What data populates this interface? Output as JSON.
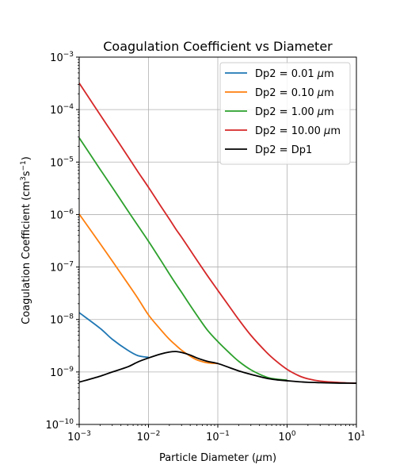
{
  "chart_data": {
    "type": "line",
    "title": "Coagulation Coefficient vs Diameter",
    "xlabel": {
      "prefix": "Particle Diameter (",
      "mu": "μ",
      "suffix": "m)"
    },
    "ylabel": {
      "prefix": "Coagulation Coefficient (cm",
      "exp1": "3",
      "mid": "s",
      "exp2": "−1",
      "suffix": ")"
    },
    "xscale": "log",
    "yscale": "log",
    "xlim": [
      0.001,
      10
    ],
    "ylim": [
      1e-10,
      0.001
    ],
    "grid": true,
    "legend_position": "upper-right",
    "x_ticks": [
      {
        "value": 0.001,
        "base": "10",
        "exp": "−3"
      },
      {
        "value": 0.01,
        "base": "10",
        "exp": "−2"
      },
      {
        "value": 0.1,
        "base": "10",
        "exp": "−1"
      },
      {
        "value": 1,
        "base": "10",
        "exp": "0"
      },
      {
        "value": 10,
        "base": "10",
        "exp": "1"
      }
    ],
    "y_ticks": [
      {
        "value": 1e-10,
        "base": "10",
        "exp": "−10"
      },
      {
        "value": 1e-09,
        "base": "10",
        "exp": "−9"
      },
      {
        "value": 1e-08,
        "base": "10",
        "exp": "−8"
      },
      {
        "value": 1e-07,
        "base": "10",
        "exp": "−7"
      },
      {
        "value": 1e-06,
        "base": "10",
        "exp": "−6"
      },
      {
        "value": 1e-05,
        "base": "10",
        "exp": "−5"
      },
      {
        "value": 0.0001,
        "base": "10",
        "exp": "−4"
      },
      {
        "value": 0.001,
        "base": "10",
        "exp": "−3"
      }
    ],
    "x": [
      0.001,
      0.002,
      0.003,
      0.005,
      0.007,
      0.01,
      0.015,
      0.02,
      0.025,
      0.03,
      0.04,
      0.05,
      0.07,
      0.1,
      0.15,
      0.2,
      0.3,
      0.5,
      0.7,
      1,
      1.5,
      2,
      3,
      5,
      7,
      10
    ],
    "series": [
      {
        "name": "Dp2 = 0.01 μm",
        "label_prefix": "Dp2 = 0.01 ",
        "label_mu": "μ",
        "label_suffix": "m",
        "color": "#1f77b4",
        "values": [
          1.35e-08,
          6.8e-09,
          4.2e-09,
          2.6e-09,
          2.05e-09,
          1.9e-09,
          null,
          null,
          null,
          null,
          null,
          null,
          null,
          null,
          null,
          null,
          null,
          null,
          null,
          null,
          null,
          null,
          null,
          null,
          null,
          null
        ]
      },
      {
        "name": "Dp2 = 0.10 μm",
        "label_prefix": "Dp2 = 0.10 ",
        "label_mu": "μ",
        "label_suffix": "m",
        "color": "#ff7f0e",
        "values": [
          1.02e-06,
          2.8e-07,
          1.3e-07,
          4.9e-08,
          2.55e-08,
          1.22e-08,
          6.4e-09,
          4.2e-09,
          3.2e-09,
          2.6e-09,
          2e-09,
          1.7e-09,
          1.5e-09,
          1.45e-09,
          null,
          null,
          null,
          null,
          null,
          null,
          null,
          null,
          null,
          null,
          null,
          null
        ]
      },
      {
        "name": "Dp2 = 1.00 μm",
        "label_prefix": "Dp2 = 1.00 ",
        "label_mu": "μ",
        "label_suffix": "m",
        "color": "#2ca02c",
        "values": [
          2.9e-05,
          7.3e-06,
          3.3e-06,
          1.2e-06,
          6.2e-07,
          3.1e-07,
          1.35e-07,
          7.4e-08,
          4.7e-08,
          3.3e-08,
          1.85e-08,
          1.2e-08,
          6.4e-09,
          3.8e-09,
          2.25e-09,
          1.6e-09,
          1.1e-09,
          8e-10,
          7.3e-10,
          7e-10,
          null,
          null,
          null,
          null,
          null,
          null
        ]
      },
      {
        "name": "Dp2 = 10.00 μm",
        "label_prefix": "Dp2 = 10.00 ",
        "label_mu": "μ",
        "label_suffix": "m",
        "color": "#d62728",
        "values": [
          0.00032,
          8e-05,
          3.6e-05,
          1.3e-05,
          6.6e-06,
          3.3e-06,
          1.45e-06,
          8.2e-07,
          5.2e-07,
          3.7e-07,
          2.1e-07,
          1.35e-07,
          7e-08,
          3.6e-08,
          1.7e-08,
          1e-08,
          5e-09,
          2.4e-09,
          1.6e-09,
          1.12e-09,
          8.4e-10,
          7.4e-10,
          6.7e-10,
          6.35e-10,
          6.2e-10,
          6.1e-10
        ]
      },
      {
        "name": "Dp2 = Dp1",
        "label_prefix": "Dp2 = Dp1",
        "label_mu": "",
        "label_suffix": "",
        "color": "#000000",
        "values": [
          6.4e-10,
          8.3e-10,
          1e-09,
          1.25e-09,
          1.55e-09,
          1.85e-09,
          2.2e-09,
          2.4e-09,
          2.45e-09,
          2.35e-09,
          2.1e-09,
          1.85e-09,
          1.6e-09,
          1.45e-09,
          1.2e-09,
          1.05e-09,
          9e-10,
          7.6e-10,
          7.1e-10,
          6.8e-10,
          6.5e-10,
          6.35e-10,
          6.25e-10,
          6.15e-10,
          6.12e-10,
          6.1e-10
        ]
      }
    ]
  }
}
